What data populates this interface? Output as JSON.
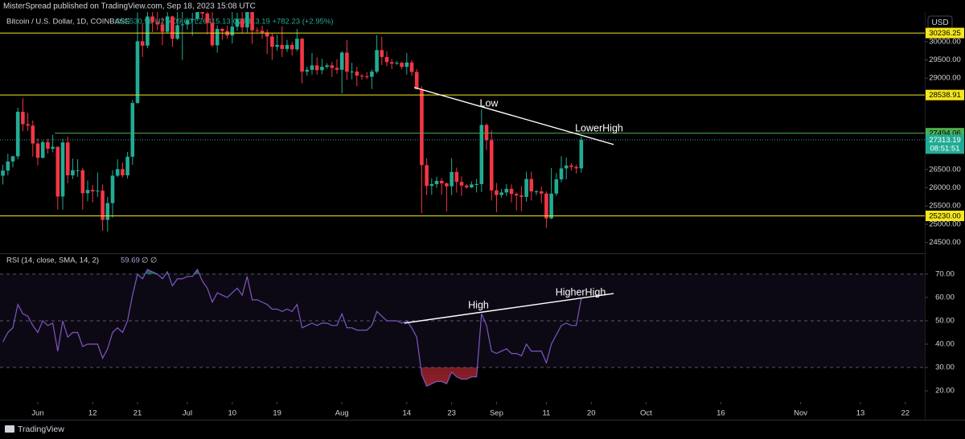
{
  "header": "MisterSpread published on TradingView.com, Sep 18, 2023 15:08 UTC",
  "currency": "USD",
  "footer": "TradingView",
  "chart_data": [
    {
      "type": "candlestick",
      "title": "Bitcoin / U.S. Dollar, 1D, COINBASE",
      "ohlc_header": "O26530.96 H27409.00 L26415.13 C27313.19 +782.23 (+2.95%)",
      "up_color": "#22ab94",
      "down_color": "#f23645",
      "xlim": [
        -7.58,
        177.9
      ],
      "x": [
        -7,
        -6,
        -5,
        -4,
        -3,
        -2,
        -1,
        0,
        1,
        2,
        3,
        4,
        5,
        6,
        7,
        8,
        9,
        10,
        11,
        12,
        13,
        14,
        15,
        16,
        17,
        18,
        19,
        20,
        21,
        22,
        23,
        24,
        25,
        26,
        27,
        28,
        29,
        30,
        31,
        32,
        33,
        34,
        35,
        36,
        37,
        38,
        39,
        40,
        41,
        42,
        43,
        44,
        45,
        46,
        47,
        48,
        49,
        50,
        51,
        52,
        53,
        54,
        55,
        56,
        57,
        58,
        59,
        60,
        61,
        62,
        63,
        64,
        65,
        66,
        67,
        68,
        69,
        70,
        71,
        72,
        73,
        74,
        75,
        76,
        77,
        78,
        79,
        80,
        81,
        82,
        83,
        84,
        85,
        86,
        87,
        88,
        89,
        90,
        91,
        92,
        93,
        94,
        95,
        96,
        97,
        98,
        99,
        100,
        101,
        102,
        103,
        104,
        105,
        106,
        107,
        108,
        109
      ],
      "open": [
        26330,
        26470,
        26720,
        26860,
        28080,
        27740,
        27700,
        27210,
        26820,
        27250,
        27070,
        27120,
        25760,
        27240,
        26340,
        26480,
        26480,
        25850,
        25940,
        25900,
        25920,
        25120,
        25580,
        26330,
        26510,
        26340,
        26850,
        28320,
        30010,
        29890,
        30690,
        30530,
        30470,
        30270,
        30690,
        30080,
        30450,
        30470,
        30590,
        30620,
        31160,
        30770,
        30510,
        29900,
        30350,
        30290,
        30170,
        30410,
        30620,
        30390,
        31480,
        30310,
        30300,
        30250,
        30140,
        29860,
        29910,
        29800,
        29910,
        29790,
        30080,
        29180,
        29230,
        29350,
        29220,
        29310,
        29350,
        29280,
        29230,
        29700,
        29180,
        29180,
        29070,
        29050,
        29040,
        29180,
        29770,
        29580,
        29440,
        29400,
        29420,
        29310,
        29430,
        29170,
        28700,
        26620,
        26050,
        26100,
        26190,
        26120,
        26040,
        26430,
        26160,
        26060,
        26010,
        26090,
        26100,
        27720,
        27300,
        25930,
        25800,
        25870,
        25970,
        25830,
        25790,
        25750,
        26240,
        25900,
        25900,
        25840,
        25160,
        25840,
        26230,
        26530,
        26610,
        26570,
        26530.96
      ],
      "high": [
        26630,
        26930,
        26880,
        28190,
        28450,
        28050,
        27840,
        27350,
        27300,
        27340,
        27450,
        27130,
        27340,
        27400,
        26800,
        26780,
        26540,
        26200,
        26080,
        26420,
        26090,
        25750,
        26480,
        26780,
        26690,
        26980,
        28400,
        30800,
        30500,
        31400,
        30810,
        31050,
        30660,
        31000,
        30710,
        30830,
        31300,
        30650,
        30790,
        31390,
        31330,
        30880,
        31500,
        30450,
        30380,
        30440,
        31020,
        30790,
        30980,
        31800,
        31640,
        30390,
        30440,
        30340,
        30240,
        30190,
        30420,
        30050,
        29990,
        30350,
        30100,
        29320,
        29690,
        29570,
        29530,
        29410,
        29450,
        29520,
        29740,
        30040,
        29420,
        29310,
        29110,
        29170,
        29240,
        30180,
        30130,
        29740,
        29530,
        29470,
        29450,
        29690,
        29490,
        29250,
        28780,
        26810,
        26260,
        26300,
        26260,
        26140,
        26810,
        26550,
        26310,
        26100,
        26170,
        26240,
        28150,
        27760,
        27570,
        26130,
        25970,
        26100,
        26090,
        25870,
        26040,
        26440,
        26440,
        25940,
        26030,
        25900,
        26540,
        26400,
        26860,
        26830,
        26670,
        26630,
        27409
      ],
      "low": [
        26090,
        26340,
        26560,
        26780,
        27550,
        27560,
        26850,
        26610,
        26800,
        26930,
        26970,
        25400,
        25400,
        26120,
        26240,
        26300,
        25400,
        25630,
        25600,
        25750,
        24820,
        24800,
        25180,
        26290,
        26280,
        26250,
        26630,
        28300,
        29580,
        29820,
        30260,
        30310,
        29900,
        30230,
        29860,
        30040,
        29500,
        30330,
        30160,
        30560,
        30620,
        30200,
        29850,
        29700,
        30050,
        30080,
        29950,
        30300,
        30220,
        30250,
        29940,
        30250,
        30080,
        29660,
        29500,
        29750,
        29580,
        29720,
        29620,
        29740,
        28860,
        29070,
        29100,
        29100,
        29110,
        29260,
        29030,
        29120,
        28580,
        28950,
        28970,
        28780,
        28960,
        28970,
        28700,
        29130,
        29360,
        29330,
        29250,
        29360,
        29250,
        29100,
        29060,
        28690,
        25300,
        25800,
        25810,
        26000,
        25810,
        25350,
        25800,
        25870,
        25780,
        25970,
        25990,
        25870,
        25880,
        27030,
        25650,
        25330,
        25720,
        25770,
        25600,
        25380,
        25360,
        25620,
        25650,
        25800,
        25580,
        24900,
        25140,
        25770,
        26150,
        26230,
        26470,
        26390,
        26415.13
      ],
      "close": [
        26470,
        26720,
        26860,
        28080,
        27740,
        27700,
        27210,
        26820,
        27250,
        27070,
        27120,
        25760,
        27240,
        26340,
        26480,
        26480,
        25850,
        25940,
        25900,
        25920,
        25120,
        25580,
        26330,
        26510,
        26340,
        26850,
        28320,
        30010,
        29890,
        30690,
        30530,
        30470,
        30270,
        30690,
        30080,
        30450,
        30470,
        30590,
        30620,
        31160,
        30770,
        30510,
        29900,
        30350,
        30290,
        30170,
        30410,
        30620,
        30390,
        31480,
        30310,
        30300,
        30250,
        30140,
        29860,
        29910,
        29800,
        29910,
        29790,
        30080,
        29180,
        29230,
        29350,
        29220,
        29310,
        29350,
        29280,
        29230,
        29700,
        29180,
        29180,
        29070,
        29050,
        29040,
        29180,
        29770,
        29580,
        29440,
        29400,
        29420,
        29310,
        29430,
        29170,
        28700,
        26620,
        26050,
        26100,
        26190,
        26120,
        26040,
        26430,
        26160,
        26060,
        26010,
        26090,
        26100,
        27720,
        27300,
        25930,
        25800,
        25870,
        25970,
        25830,
        25790,
        25750,
        26240,
        25900,
        25900,
        25840,
        25160,
        25840,
        26230,
        26530,
        26610,
        26570,
        26530.96,
        27313.19
      ],
      "countdown": "08:51:51",
      "ylim": [
        24250,
        30810
      ],
      "yticks": [
        {
          "value": 24500,
          "label": "24500.00"
        },
        {
          "value": 25000,
          "label": "25000.00"
        },
        {
          "value": 25500,
          "label": "25500.00"
        },
        {
          "value": 26000,
          "label": "26000.00"
        },
        {
          "value": 26500,
          "label": "26500.00"
        },
        {
          "value": 29000,
          "label": "29000.00"
        },
        {
          "value": 29500,
          "label": "29500.00"
        },
        {
          "value": 30000,
          "label": "30000.00"
        }
      ],
      "hlines": [
        {
          "value": 30236.25,
          "label": "30236.25",
          "color": "#f5e61d"
        },
        {
          "value": 28538.91,
          "label": "28538.91",
          "color": "#f5e61d"
        },
        {
          "value": 27494.06,
          "label": "27494.06",
          "color": "#4caf50",
          "x0": 3.4
        },
        {
          "value": 25230,
          "label": "25230.00",
          "color": "#f5e61d"
        }
      ],
      "trendlines": [
        {
          "x": [
            75.5,
            115.5
          ],
          "y": [
            28746,
            27184
          ],
          "color": "#ffffff"
        }
      ],
      "annotations": [
        "Low",
        "LowerHigh"
      ]
    },
    {
      "type": "line",
      "title": "RSI (14, close, SMA, 14, 2)",
      "title_extra": "∅ ∅",
      "xlim": [
        -7.58,
        177.9
      ],
      "xticks": [
        {
          "value": 0,
          "label": "Jun"
        },
        {
          "value": 11,
          "label": "12"
        },
        {
          "value": 20,
          "label": "21"
        },
        {
          "value": 30,
          "label": "Jul"
        },
        {
          "value": 39,
          "label": "10"
        },
        {
          "value": 48,
          "label": "19"
        },
        {
          "value": 61,
          "label": "Aug"
        },
        {
          "value": 74,
          "label": "14"
        },
        {
          "value": 83,
          "label": "23"
        },
        {
          "value": 92,
          "label": "Sep"
        },
        {
          "value": 102,
          "label": "11"
        },
        {
          "value": 111,
          "label": "20"
        },
        {
          "value": 122,
          "label": "Oct"
        },
        {
          "value": 137,
          "label": "16"
        },
        {
          "value": 153,
          "label": "Nov"
        },
        {
          "value": 165,
          "label": "13"
        },
        {
          "value": 174,
          "label": "22"
        }
      ],
      "series": [
        {
          "color": "#7e57c2",
          "values": [
            41,
            45,
            47,
            57,
            53,
            52,
            48,
            45,
            50,
            48,
            49,
            37,
            50,
            43,
            45,
            45,
            39,
            40,
            40,
            40,
            34,
            38,
            45,
            47,
            45,
            50,
            61,
            70,
            68,
            72,
            71,
            70,
            68,
            71,
            65,
            68,
            68,
            69,
            69,
            72,
            67,
            64,
            58,
            62,
            61,
            60,
            62,
            64,
            61,
            69,
            59,
            59,
            58,
            57,
            55,
            55,
            54,
            55,
            54,
            57,
            47,
            48,
            49,
            48,
            49,
            49,
            48,
            48,
            53,
            47,
            47,
            46,
            46,
            46,
            48,
            54,
            52,
            50,
            50,
            50,
            49,
            50,
            47,
            43,
            27,
            22,
            23,
            24,
            24,
            23,
            28,
            26,
            25,
            25,
            26,
            26,
            53,
            48,
            37,
            36,
            37,
            38,
            36,
            36,
            35,
            40,
            37,
            37,
            37,
            32,
            40,
            44,
            48,
            49,
            48,
            48,
            59.69
          ]
        }
      ],
      "ylim": [
        15.2,
        77.9
      ],
      "yticks": [
        {
          "value": 20,
          "label": "20.00"
        },
        {
          "value": 30,
          "label": "30.00"
        },
        {
          "value": 40,
          "label": "40.00"
        },
        {
          "value": 50,
          "label": "50.00"
        },
        {
          "value": 60,
          "label": "60.00"
        },
        {
          "value": 70,
          "label": "70.00"
        }
      ],
      "levels": [
        70,
        50,
        30
      ],
      "trendlines": [
        {
          "x": [
            73.5,
            115.5
          ],
          "y": [
            49,
            61.7
          ],
          "color": "#ffffff"
        }
      ],
      "annotations": [
        "High",
        "HigherHigh"
      ]
    }
  ]
}
